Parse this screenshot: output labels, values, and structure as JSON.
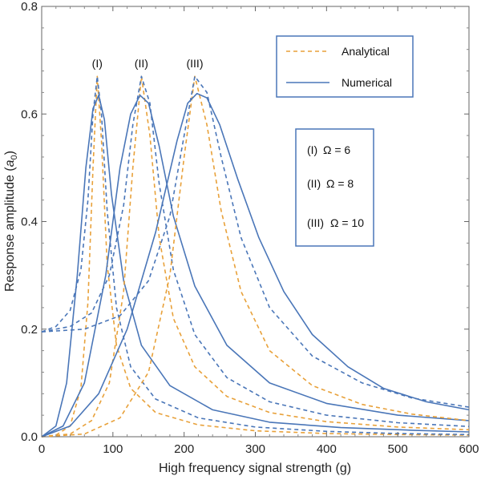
{
  "chart_data": {
    "type": "line",
    "title": "",
    "xlabel": "High frequency signal strength (g)",
    "ylabel_main": "Response amplitude (",
    "ylabel_var": "a",
    "ylabel_sub": "0",
    "ylabel_close": ")",
    "xlim": [
      0,
      600
    ],
    "ylim": [
      0,
      0.8
    ],
    "xticks": [
      "0",
      "100",
      "200",
      "300",
      "400",
      "500",
      "600"
    ],
    "yticks": [
      "0.0",
      "0.2",
      "0.4",
      "0.6",
      "0.8"
    ],
    "grid": false,
    "legend": {
      "placement": "top-right",
      "entries": [
        {
          "label": "Analytical",
          "style": "dashed",
          "color": "#E8A13A"
        },
        {
          "label": "Numerical",
          "style": "solid",
          "color": "#4A76B8"
        }
      ]
    },
    "param_box": {
      "placement": "right",
      "entries": [
        {
          "id": "(I)",
          "text": "Ω = 6"
        },
        {
          "id": "(II)",
          "text": "Ω = 8"
        },
        {
          "id": "(III)",
          "text": "Ω = 10"
        }
      ]
    },
    "peak_labels": [
      {
        "text": "(I)",
        "x": 78
      },
      {
        "text": "(II)",
        "x": 140
      },
      {
        "text": "(III)",
        "x": 215
      }
    ],
    "series": [
      {
        "group": "I",
        "kind": "analytical-orange",
        "color": "#E8A13A",
        "dash": "5,4",
        "points": [
          [
            0,
            0.0
          ],
          [
            20,
            0.003
          ],
          [
            40,
            0.02
          ],
          [
            55,
            0.09
          ],
          [
            65,
            0.25
          ],
          [
            72,
            0.5
          ],
          [
            78,
            0.67
          ],
          [
            84,
            0.55
          ],
          [
            92,
            0.32
          ],
          [
            105,
            0.17
          ],
          [
            125,
            0.09
          ],
          [
            160,
            0.045
          ],
          [
            220,
            0.022
          ],
          [
            300,
            0.011
          ],
          [
            400,
            0.006
          ],
          [
            500,
            0.004
          ],
          [
            600,
            0.003
          ]
        ]
      },
      {
        "group": "I",
        "kind": "analytical-blue",
        "color": "#4A76B8",
        "dash": "5,4",
        "points": [
          [
            0,
            0.195
          ],
          [
            20,
            0.205
          ],
          [
            40,
            0.235
          ],
          [
            55,
            0.31
          ],
          [
            65,
            0.44
          ],
          [
            72,
            0.6
          ],
          [
            78,
            0.67
          ],
          [
            84,
            0.6
          ],
          [
            92,
            0.42
          ],
          [
            105,
            0.24
          ],
          [
            125,
            0.13
          ],
          [
            160,
            0.07
          ],
          [
            220,
            0.035
          ],
          [
            300,
            0.018
          ],
          [
            400,
            0.01
          ],
          [
            500,
            0.006
          ],
          [
            600,
            0.004
          ]
        ]
      },
      {
        "group": "I",
        "kind": "numerical",
        "color": "#4A76B8",
        "dash": "",
        "points": [
          [
            0,
            0.0
          ],
          [
            20,
            0.02
          ],
          [
            35,
            0.1
          ],
          [
            50,
            0.3
          ],
          [
            62,
            0.5
          ],
          [
            72,
            0.61
          ],
          [
            80,
            0.635
          ],
          [
            88,
            0.59
          ],
          [
            98,
            0.45
          ],
          [
            115,
            0.29
          ],
          [
            140,
            0.17
          ],
          [
            180,
            0.095
          ],
          [
            240,
            0.05
          ],
          [
            320,
            0.027
          ],
          [
            420,
            0.017
          ],
          [
            520,
            0.012
          ],
          [
            600,
            0.009
          ]
        ]
      },
      {
        "group": "II",
        "kind": "analytical-orange",
        "color": "#E8A13A",
        "dash": "5,4",
        "points": [
          [
            0,
            0.0
          ],
          [
            40,
            0.005
          ],
          [
            70,
            0.03
          ],
          [
            95,
            0.1
          ],
          [
            115,
            0.27
          ],
          [
            128,
            0.5
          ],
          [
            140,
            0.67
          ],
          [
            152,
            0.56
          ],
          [
            165,
            0.37
          ],
          [
            185,
            0.22
          ],
          [
            215,
            0.13
          ],
          [
            260,
            0.075
          ],
          [
            320,
            0.045
          ],
          [
            400,
            0.028
          ],
          [
            500,
            0.018
          ],
          [
            600,
            0.013
          ]
        ]
      },
      {
        "group": "II",
        "kind": "analytical-blue",
        "color": "#4A76B8",
        "dash": "5,4",
        "points": [
          [
            0,
            0.195
          ],
          [
            40,
            0.205
          ],
          [
            70,
            0.23
          ],
          [
            95,
            0.3
          ],
          [
            115,
            0.43
          ],
          [
            128,
            0.58
          ],
          [
            140,
            0.67
          ],
          [
            152,
            0.62
          ],
          [
            165,
            0.47
          ],
          [
            185,
            0.31
          ],
          [
            215,
            0.19
          ],
          [
            260,
            0.11
          ],
          [
            320,
            0.065
          ],
          [
            400,
            0.04
          ],
          [
            500,
            0.026
          ],
          [
            600,
            0.019
          ]
        ]
      },
      {
        "group": "II",
        "kind": "numerical",
        "color": "#4A76B8",
        "dash": "",
        "points": [
          [
            0,
            0.0
          ],
          [
            30,
            0.02
          ],
          [
            60,
            0.1
          ],
          [
            90,
            0.3
          ],
          [
            110,
            0.5
          ],
          [
            125,
            0.6
          ],
          [
            138,
            0.635
          ],
          [
            150,
            0.62
          ],
          [
            165,
            0.54
          ],
          [
            185,
            0.41
          ],
          [
            215,
            0.28
          ],
          [
            260,
            0.17
          ],
          [
            320,
            0.1
          ],
          [
            400,
            0.062
          ],
          [
            500,
            0.04
          ],
          [
            600,
            0.03
          ]
        ]
      },
      {
        "group": "III",
        "kind": "analytical-orange",
        "color": "#E8A13A",
        "dash": "5,4",
        "points": [
          [
            0,
            0.0
          ],
          [
            60,
            0.005
          ],
          [
            110,
            0.035
          ],
          [
            150,
            0.12
          ],
          [
            180,
            0.3
          ],
          [
            200,
            0.52
          ],
          [
            215,
            0.67
          ],
          [
            232,
            0.58
          ],
          [
            252,
            0.42
          ],
          [
            280,
            0.27
          ],
          [
            320,
            0.16
          ],
          [
            380,
            0.095
          ],
          [
            450,
            0.06
          ],
          [
            520,
            0.042
          ],
          [
            600,
            0.03
          ]
        ]
      },
      {
        "group": "III",
        "kind": "analytical-blue",
        "color": "#4A76B8",
        "dash": "5,4",
        "points": [
          [
            0,
            0.195
          ],
          [
            60,
            0.2
          ],
          [
            110,
            0.225
          ],
          [
            150,
            0.29
          ],
          [
            180,
            0.41
          ],
          [
            200,
            0.56
          ],
          [
            215,
            0.67
          ],
          [
            232,
            0.64
          ],
          [
            252,
            0.52
          ],
          [
            280,
            0.37
          ],
          [
            320,
            0.24
          ],
          [
            380,
            0.15
          ],
          [
            450,
            0.1
          ],
          [
            520,
            0.072
          ],
          [
            600,
            0.055
          ]
        ]
      },
      {
        "group": "III",
        "kind": "numerical",
        "color": "#4A76B8",
        "dash": "",
        "points": [
          [
            0,
            0.0
          ],
          [
            40,
            0.02
          ],
          [
            80,
            0.08
          ],
          [
            120,
            0.2
          ],
          [
            160,
            0.38
          ],
          [
            190,
            0.55
          ],
          [
            205,
            0.62
          ],
          [
            218,
            0.638
          ],
          [
            232,
            0.63
          ],
          [
            250,
            0.58
          ],
          [
            275,
            0.48
          ],
          [
            305,
            0.37
          ],
          [
            340,
            0.27
          ],
          [
            380,
            0.19
          ],
          [
            430,
            0.13
          ],
          [
            480,
            0.09
          ],
          [
            540,
            0.065
          ],
          [
            600,
            0.05
          ]
        ]
      }
    ]
  }
}
